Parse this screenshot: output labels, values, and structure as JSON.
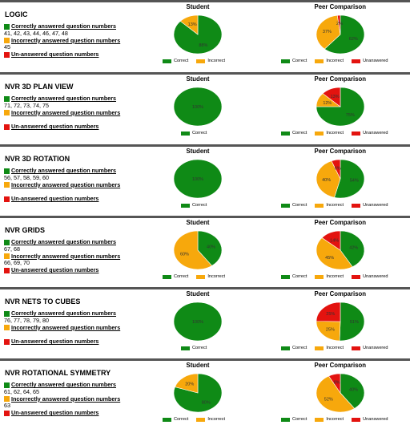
{
  "colors": {
    "correct": "#0f8a16",
    "incorrect": "#f7a80c",
    "unanswered": "#e3130f"
  },
  "labels": {
    "student": "Student",
    "peer": "Peer Comparison",
    "correct_heading": "Correctly answered question numbers",
    "incorrect_heading": "Incorrectly answered question numbers",
    "unanswered_heading": "Un-answered question numbers",
    "legend_correct": "Correct",
    "legend_incorrect": "Incorrect",
    "legend_unanswered": "Unanswered"
  },
  "sections": [
    {
      "title": "LOGIC",
      "correct_nums": "41, 42, 43, 44, 46, 47, 48",
      "incorrect_nums": "45",
      "unanswered_nums": ""
    },
    {
      "title": "NVR 3D PLAN VIEW",
      "correct_nums": "71, 72, 73, 74, 75",
      "incorrect_nums": "",
      "unanswered_nums": ""
    },
    {
      "title": "NVR 3D ROTATION",
      "correct_nums": "56, 57, 58, 59, 60",
      "incorrect_nums": "",
      "unanswered_nums": ""
    },
    {
      "title": "NVR GRIDS",
      "correct_nums": "67, 68",
      "incorrect_nums": "66, 69, 70",
      "unanswered_nums": ""
    },
    {
      "title": "NVR NETS TO CUBES",
      "correct_nums": "76, 77, 78, 79, 80",
      "incorrect_nums": "",
      "unanswered_nums": ""
    },
    {
      "title": "NVR ROTATIONAL SYMMETRY",
      "correct_nums": "61, 62, 64, 65",
      "incorrect_nums": "63",
      "unanswered_nums": ""
    }
  ],
  "chart_data": [
    {
      "type": "pie",
      "section": "LOGIC",
      "chart": "Student",
      "categories": [
        "Correct",
        "Incorrect"
      ],
      "values": [
        88,
        13
      ],
      "labels": [
        "88%",
        "13%"
      ],
      "legend": [
        "Correct",
        "Incorrect"
      ]
    },
    {
      "type": "pie",
      "section": "LOGIC",
      "chart": "Peer Comparison",
      "categories": [
        "Correct",
        "Incorrect",
        "Unanswered"
      ],
      "values": [
        62,
        37,
        2
      ],
      "labels": [
        "62%",
        "37%",
        "2%"
      ],
      "legend": [
        "Correct",
        "Incorrect",
        "Unanswered"
      ]
    },
    {
      "type": "pie",
      "section": "NVR 3D PLAN VIEW",
      "chart": "Student",
      "categories": [
        "Correct"
      ],
      "values": [
        100
      ],
      "labels": [
        "100%"
      ],
      "legend": [
        "Correct"
      ]
    },
    {
      "type": "pie",
      "section": "NVR 3D PLAN VIEW",
      "chart": "Peer Comparison",
      "categories": [
        "Correct",
        "Incorrect",
        "Unanswered"
      ],
      "values": [
        75,
        12,
        13
      ],
      "labels": [
        "75%",
        "12%",
        "13%"
      ],
      "legend": [
        "Correct",
        "Incorrect",
        "Unanswered"
      ]
    },
    {
      "type": "pie",
      "section": "NVR 3D ROTATION",
      "chart": "Student",
      "categories": [
        "Correct"
      ],
      "values": [
        100
      ],
      "labels": [
        "100%"
      ],
      "legend": [
        "Correct"
      ]
    },
    {
      "type": "pie",
      "section": "NVR 3D ROTATION",
      "chart": "Peer Comparison",
      "categories": [
        "Correct",
        "Incorrect",
        "Unanswered"
      ],
      "values": [
        54,
        40,
        6
      ],
      "labels": [
        "54%",
        "40%",
        "6%"
      ],
      "legend": [
        "Correct",
        "Incorrect",
        "Unanswered"
      ]
    },
    {
      "type": "pie",
      "section": "NVR GRIDS",
      "chart": "Student",
      "categories": [
        "Correct",
        "Incorrect"
      ],
      "values": [
        40,
        60
      ],
      "labels": [
        "40%",
        "60%"
      ],
      "legend": [
        "Correct",
        "Incorrect"
      ]
    },
    {
      "type": "pie",
      "section": "NVR GRIDS",
      "chart": "Peer Comparison",
      "categories": [
        "Correct",
        "Incorrect",
        "Unanswered"
      ],
      "values": [
        42,
        45,
        14
      ],
      "labels": [
        "42%",
        "45%",
        "14%"
      ],
      "legend": [
        "Correct",
        "Incorrect",
        "Unanswered"
      ]
    },
    {
      "type": "pie",
      "section": "NVR NETS TO CUBES",
      "chart": "Student",
      "categories": [
        "Correct"
      ],
      "values": [
        100
      ],
      "labels": [
        "100%"
      ],
      "legend": [
        "Correct"
      ]
    },
    {
      "type": "pie",
      "section": "NVR NETS TO CUBES",
      "chart": "Peer Comparison",
      "categories": [
        "Correct",
        "Incorrect",
        "Unanswered"
      ],
      "values": [
        51,
        25,
        25
      ],
      "labels": [
        "51%",
        "25%",
        "25%"
      ],
      "legend": [
        "Correct",
        "Incorrect",
        "Unanswered"
      ]
    },
    {
      "type": "pie",
      "section": "NVR ROTATIONAL SYMMETRY",
      "chart": "Student",
      "categories": [
        "Correct",
        "Incorrect"
      ],
      "values": [
        80,
        20
      ],
      "labels": [
        "80%",
        "20%"
      ],
      "legend": [
        "Correct",
        "Incorrect"
      ]
    },
    {
      "type": "pie",
      "section": "NVR ROTATIONAL SYMMETRY",
      "chart": "Peer Comparison",
      "categories": [
        "Correct",
        "Incorrect",
        "Unanswered"
      ],
      "values": [
        40,
        52,
        8
      ],
      "labels": [
        "40%",
        "52%",
        "8%"
      ],
      "legend": [
        "Correct",
        "Incorrect",
        "Unanswered"
      ]
    }
  ]
}
